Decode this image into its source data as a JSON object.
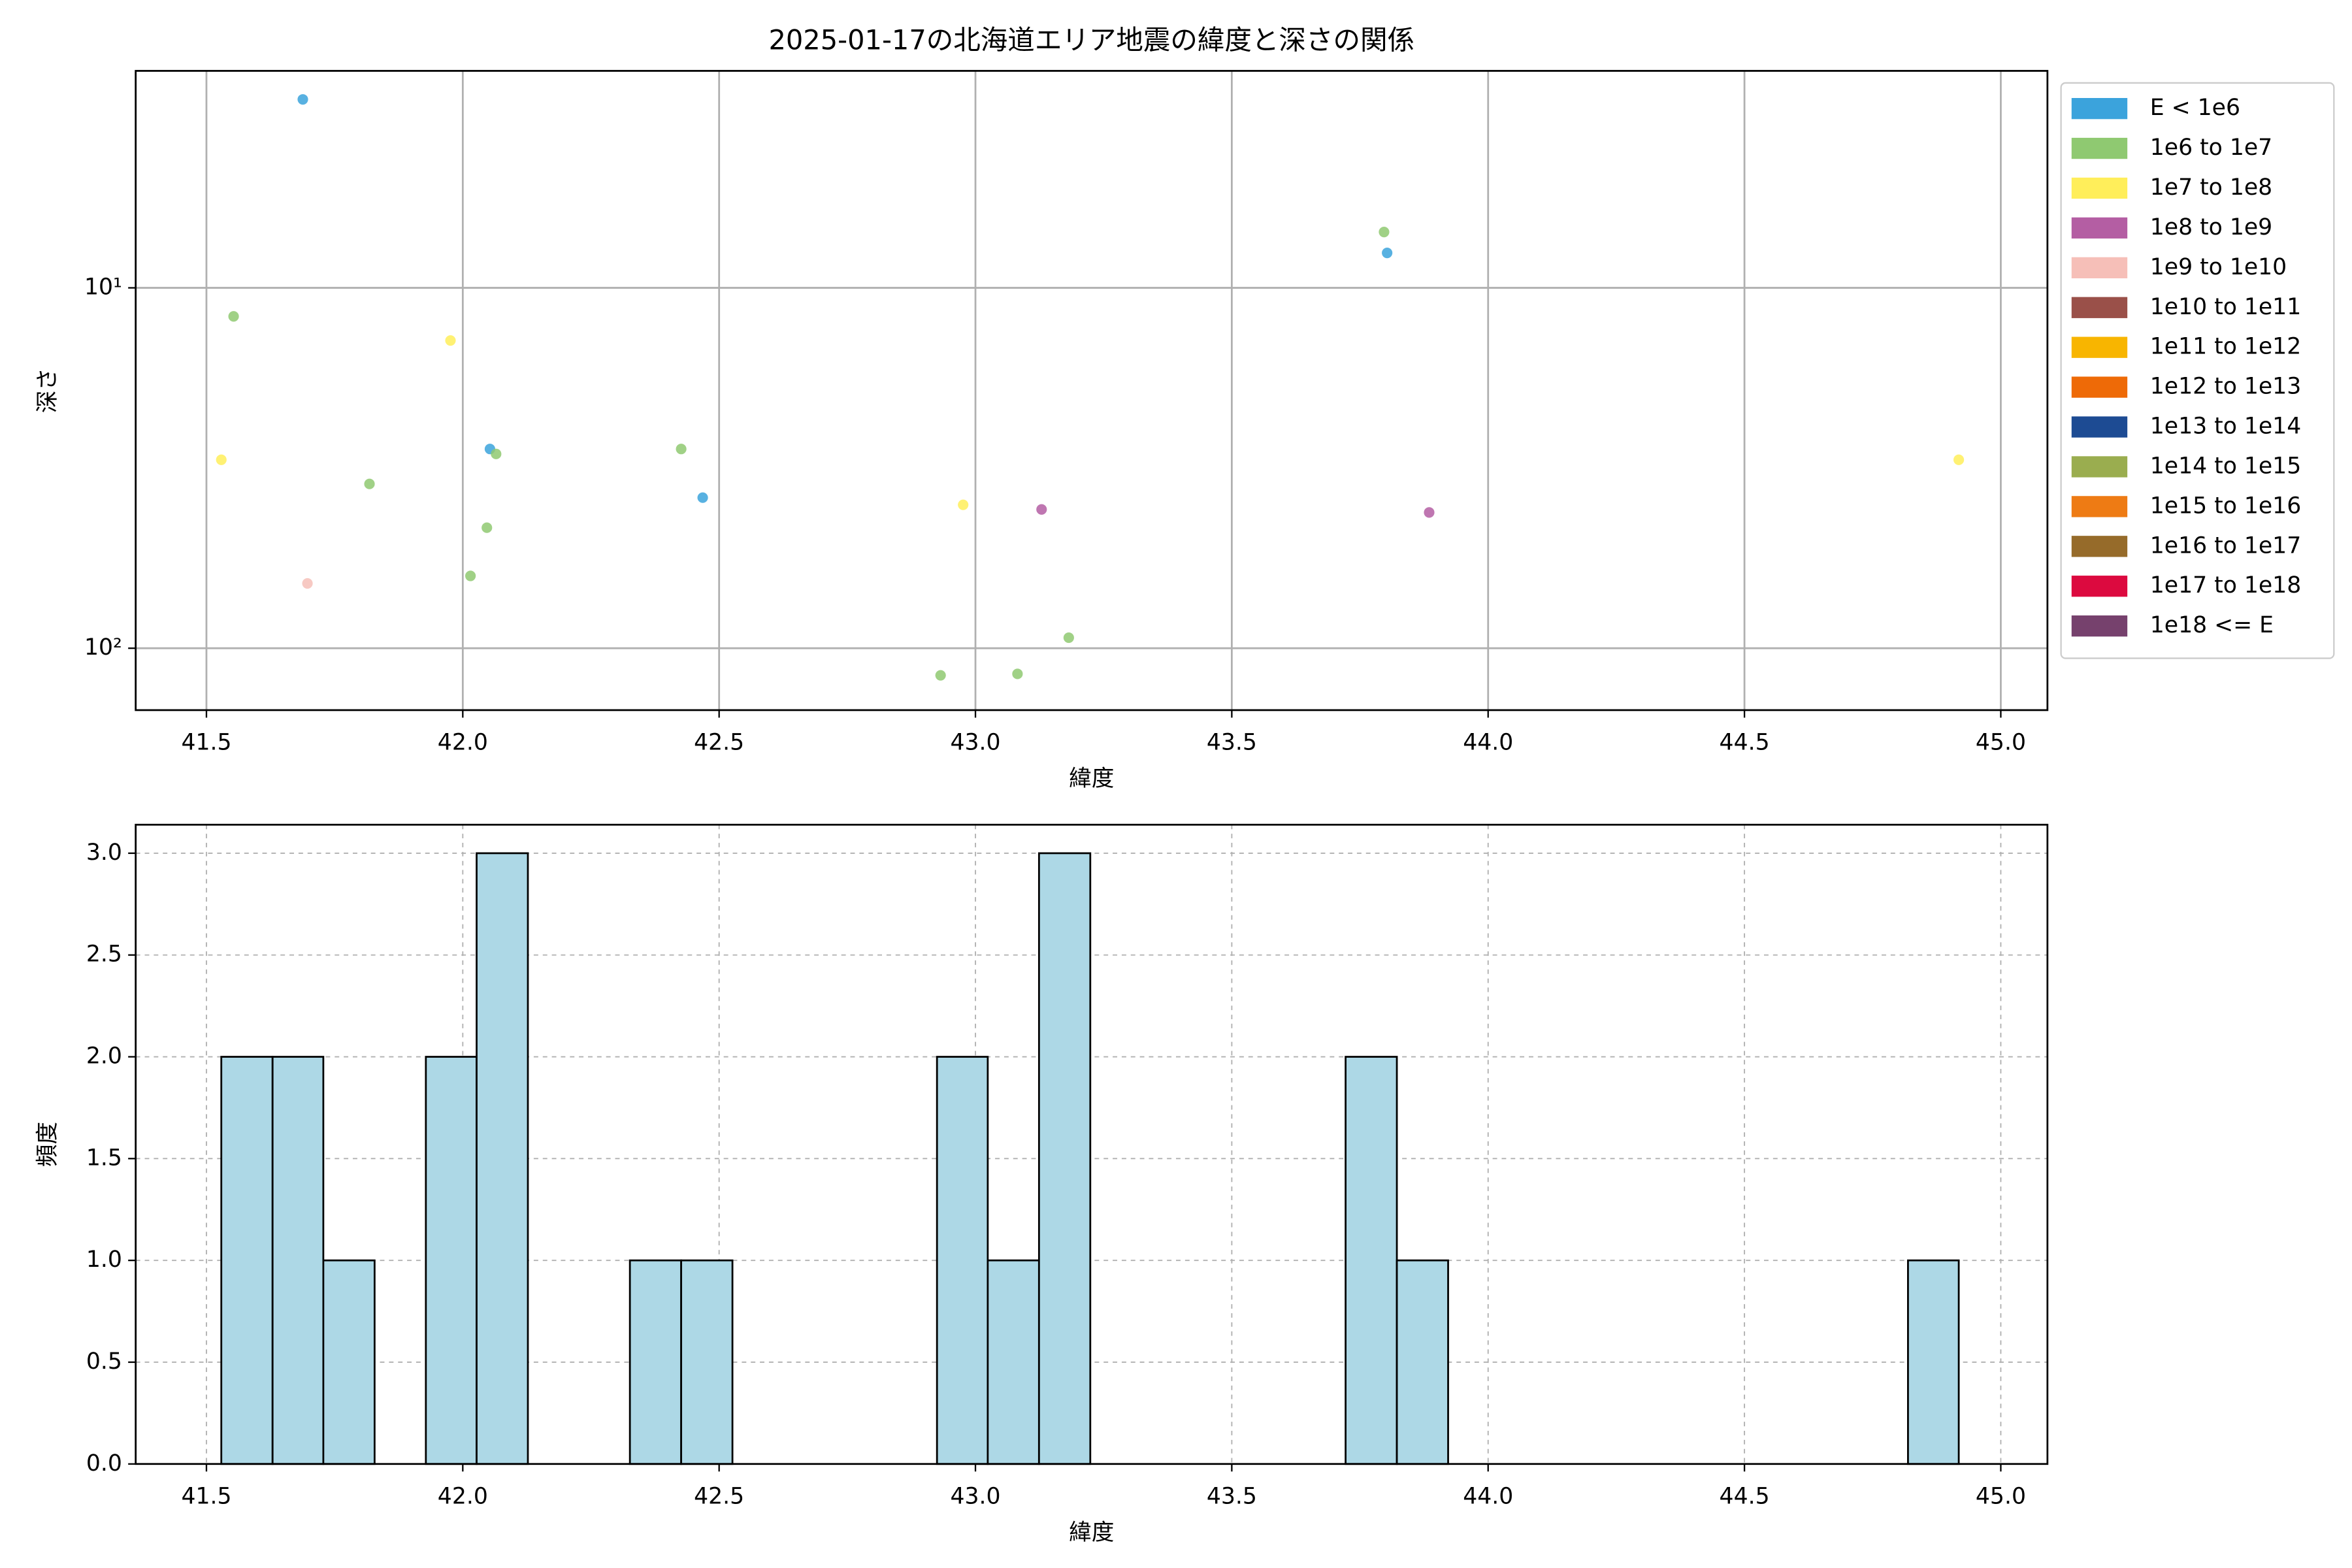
{
  "chart_data": [
    {
      "type": "scatter",
      "title": "2025-01-17の北海道エリア地震の緯度と深さの関係",
      "x_label": "緯度",
      "y_label": "深さ",
      "xlim": [
        41.362,
        45.091
      ],
      "ylim": [
        2.5,
        148.5
      ],
      "y_scale": "log",
      "y_inverted": true,
      "xticks": [
        41.5,
        {
          "value": 42,
          "label": "42.0"
        },
        42.5,
        {
          "value": 43,
          "label": "43.0"
        },
        43.5,
        {
          "value": 44,
          "label": "44.0"
        },
        44.5,
        {
          "value": 45,
          "label": "45.0"
        }
      ],
      "yticks": [
        {
          "value": 10,
          "label": "10¹"
        },
        {
          "value": 100,
          "label": "10²"
        }
      ],
      "grid": true,
      "legend": "outside upper right",
      "series": [
        {
          "name": "E < 1e6",
          "color": "#3ba3dc",
          "x": [
            41.688,
            43.803,
            42.053,
            42.468
          ],
          "values": [
            3.0,
            8.0,
            28.0,
            38.2
          ]
        },
        {
          "name": "1e6 to 1e7",
          "color": "#8fc971",
          "x": [
            43.797,
            41.553,
            42.065,
            42.426,
            41.818,
            42.047,
            42.015,
            43.182,
            42.932,
            43.082
          ],
          "values": [
            7.0,
            12.0,
            28.9,
            28.0,
            35.0,
            46.3,
            63.0,
            93.5,
            118.9,
            117.8
          ]
        },
        {
          "name": "1e7 to 1e8",
          "color": "#ffee5a",
          "x": [
            41.976,
            41.529,
            42.976,
            44.918
          ],
          "values": [
            14.0,
            30.0,
            40.0,
            30.0
          ]
        },
        {
          "name": "1e8 to 1e9",
          "color": "#b45ea3",
          "x": [
            43.129,
            43.885
          ],
          "values": [
            41.2,
            42.0
          ]
        },
        {
          "name": "1e9 to 1e10",
          "color": "#f6bfb8",
          "x": [
            41.697
          ],
          "values": [
            66.1
          ]
        },
        {
          "name": "1e10 to 1e11",
          "color": "#9a5049",
          "x": [],
          "values": []
        },
        {
          "name": "1e11 to 1e12",
          "color": "#f8b500",
          "x": [],
          "values": []
        },
        {
          "name": "1e12 to 1e13",
          "color": "#ee6a07",
          "x": [],
          "values": []
        },
        {
          "name": "1e13 to 1e14",
          "color": "#1d4b93",
          "x": [],
          "values": []
        },
        {
          "name": "1e14 to 1e15",
          "color": "#9aad4f",
          "x": [],
          "values": []
        },
        {
          "name": "1e15 to 1e16",
          "color": "#ee7b14",
          "x": [],
          "values": []
        },
        {
          "name": "1e16 to 1e17",
          "color": "#966b2a",
          "x": [],
          "values": []
        },
        {
          "name": "1e17 to 1e18",
          "color": "#dc0a3f",
          "x": [],
          "values": []
        },
        {
          "name": "1e18 <= E",
          "color": "#76416d",
          "x": [],
          "values": []
        }
      ]
    },
    {
      "type": "histogram",
      "x_label": "緯度",
      "y_label": "頻度",
      "color": "#add8e6",
      "edge_color": "#000000",
      "xlim": [
        41.362,
        45.091
      ],
      "ylim": [
        0,
        3.14
      ],
      "xticks": [
        41.5,
        {
          "value": 42,
          "label": "42.0"
        },
        42.5,
        {
          "value": 43,
          "label": "43.0"
        },
        43.5,
        {
          "value": 44,
          "label": "44.0"
        },
        44.5,
        {
          "value": 45,
          "label": "45.0"
        }
      ],
      "yticks": [
        {
          "value": 0,
          "label": "0.0"
        },
        0.5,
        {
          "value": 1,
          "label": "1.0"
        },
        1.5,
        {
          "value": 2,
          "label": "2.0"
        },
        2.5,
        {
          "value": 3,
          "label": "3.0"
        }
      ],
      "grid": true,
      "grid_style": "dashed",
      "bins": [
        41.529,
        41.629,
        41.728,
        41.828,
        41.928,
        42.027,
        42.127,
        42.227,
        42.326,
        42.426,
        42.526,
        42.625,
        42.725,
        42.825,
        42.925,
        43.024,
        43.124,
        43.224,
        43.323,
        43.423,
        43.523,
        43.622,
        43.722,
        43.822,
        43.922,
        44.021,
        44.121,
        44.221,
        44.32,
        44.42,
        44.52,
        44.619,
        44.719,
        44.819,
        44.918
      ],
      "counts": [
        2,
        2,
        1,
        0,
        2,
        3,
        0,
        0,
        1,
        1,
        0,
        0,
        0,
        0,
        2,
        1,
        3,
        0,
        0,
        0,
        0,
        0,
        2,
        1,
        0,
        0,
        0,
        0,
        0,
        0,
        0,
        0,
        0,
        1
      ]
    }
  ]
}
